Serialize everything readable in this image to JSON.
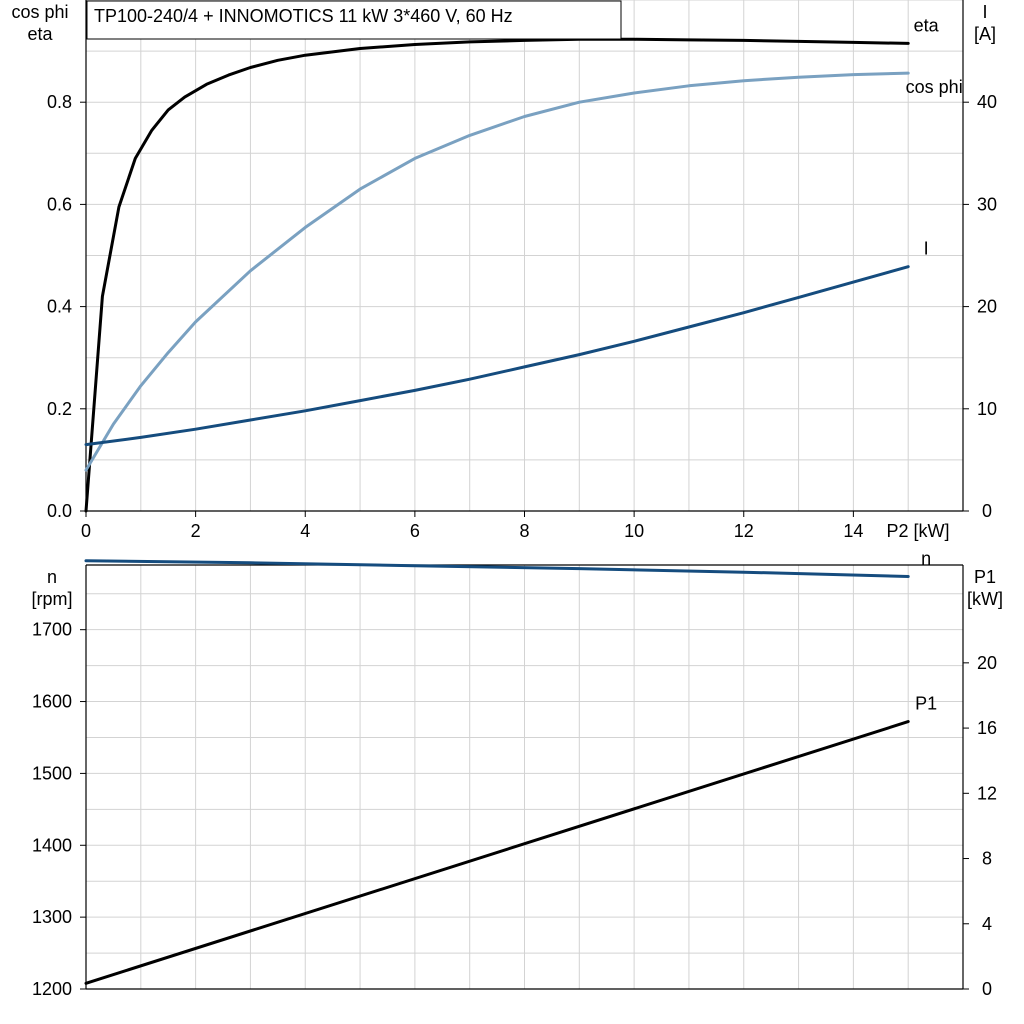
{
  "chart_title": "TP100-240/4 + INNOMOTICS   11 kW   3*460 V, 60 Hz",
  "chart_data": [
    {
      "type": "line",
      "panel": "top",
      "xlabel": "P2 [kW]",
      "xlim": [
        0,
        16
      ],
      "xticks": [
        0,
        2,
        4,
        6,
        8,
        10,
        12,
        14
      ],
      "left_axis": {
        "label_lines": [
          "cos phi",
          "eta"
        ],
        "lim": [
          0,
          1.0
        ],
        "ticks": [
          0.0,
          0.2,
          0.4,
          0.6,
          0.8
        ]
      },
      "right_axis": {
        "label_lines": [
          "I",
          "[A]"
        ],
        "lim": [
          0,
          50
        ],
        "ticks": [
          0,
          10,
          20,
          30,
          40
        ]
      },
      "grid": true,
      "series": [
        {
          "name": "eta",
          "axis": "left",
          "color": "#000000",
          "points": [
            [
              0,
              0
            ],
            [
              0.3,
              0.42
            ],
            [
              0.6,
              0.595
            ],
            [
              0.9,
              0.69
            ],
            [
              1.2,
              0.745
            ],
            [
              1.5,
              0.785
            ],
            [
              1.8,
              0.81
            ],
            [
              2.2,
              0.835
            ],
            [
              2.6,
              0.853
            ],
            [
              3,
              0.868
            ],
            [
              3.5,
              0.882
            ],
            [
              4,
              0.892
            ],
            [
              5,
              0.905
            ],
            [
              6,
              0.913
            ],
            [
              7,
              0.918
            ],
            [
              8,
              0.921
            ],
            [
              9,
              0.923
            ],
            [
              10,
              0.923
            ],
            [
              11,
              0.922
            ],
            [
              12,
              0.921
            ],
            [
              13,
              0.919
            ],
            [
              14,
              0.917
            ],
            [
              15,
              0.915
            ]
          ]
        },
        {
          "name": "cos phi",
          "axis": "left",
          "color": "#7aa1c1",
          "points": [
            [
              0,
              0.08
            ],
            [
              0.5,
              0.17
            ],
            [
              1,
              0.245
            ],
            [
              1.5,
              0.31
            ],
            [
              2,
              0.37
            ],
            [
              3,
              0.47
            ],
            [
              4,
              0.555
            ],
            [
              5,
              0.63
            ],
            [
              6,
              0.69
            ],
            [
              7,
              0.735
            ],
            [
              8,
              0.772
            ],
            [
              9,
              0.8
            ],
            [
              10,
              0.818
            ],
            [
              11,
              0.832
            ],
            [
              12,
              0.842
            ],
            [
              13,
              0.849
            ],
            [
              14,
              0.854
            ],
            [
              15,
              0.857
            ]
          ]
        },
        {
          "name": "I",
          "axis": "right",
          "color": "#154c7e",
          "points": [
            [
              0,
              6.5
            ],
            [
              1,
              7.2
            ],
            [
              2,
              8
            ],
            [
              3,
              8.9
            ],
            [
              4,
              9.8
            ],
            [
              5,
              10.8
            ],
            [
              6,
              11.8
            ],
            [
              7,
              12.9
            ],
            [
              8,
              14.1
            ],
            [
              9,
              15.3
            ],
            [
              10,
              16.6
            ],
            [
              11,
              18
            ],
            [
              12,
              19.4
            ],
            [
              13,
              20.9
            ],
            [
              14,
              22.4
            ],
            [
              15,
              23.9
            ]
          ]
        }
      ]
    },
    {
      "type": "line",
      "panel": "bottom",
      "xlim": [
        0,
        16
      ],
      "left_axis": {
        "label_lines": [
          "n",
          "[rpm]"
        ],
        "lim": [
          1200,
          1790
        ],
        "ticks": [
          1200,
          1300,
          1400,
          1500,
          1600,
          1700
        ]
      },
      "right_axis": {
        "label_lines": [
          "P1",
          "[kW]"
        ],
        "lim": [
          0,
          26
        ],
        "ticks": [
          0,
          4,
          8,
          12,
          16,
          20
        ]
      },
      "grid": true,
      "series": [
        {
          "name": "n",
          "axis": "left",
          "color": "#154c7e",
          "points": [
            [
              0,
              1796
            ],
            [
              3,
              1793
            ],
            [
              6,
              1789
            ],
            [
              9,
              1785
            ],
            [
              12,
              1780
            ],
            [
              15,
              1774
            ]
          ]
        },
        {
          "name": "P1",
          "axis": "right",
          "color": "#000000",
          "points": [
            [
              0,
              0.35
            ],
            [
              15,
              16.4
            ]
          ]
        }
      ]
    }
  ]
}
